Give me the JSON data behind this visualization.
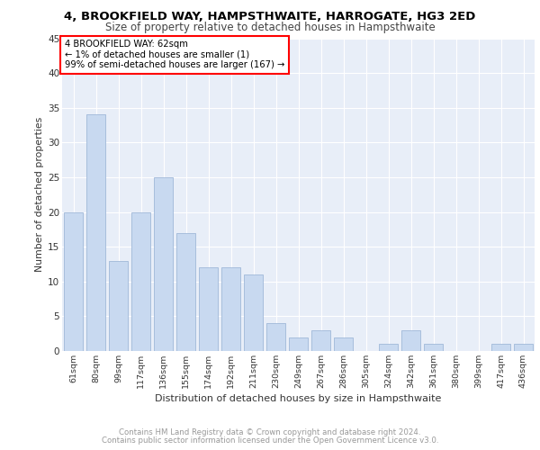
{
  "title1": "4, BROOKFIELD WAY, HAMPSTHWAITE, HARROGATE, HG3 2ED",
  "title2": "Size of property relative to detached houses in Hampsthwaite",
  "xlabel": "Distribution of detached houses by size in Hampsthwaite",
  "ylabel": "Number of detached properties",
  "categories": [
    "61sqm",
    "80sqm",
    "99sqm",
    "117sqm",
    "136sqm",
    "155sqm",
    "174sqm",
    "192sqm",
    "211sqm",
    "230sqm",
    "249sqm",
    "267sqm",
    "286sqm",
    "305sqm",
    "324sqm",
    "342sqm",
    "361sqm",
    "380sqm",
    "399sqm",
    "417sqm",
    "436sqm"
  ],
  "values": [
    20,
    34,
    13,
    20,
    25,
    17,
    12,
    12,
    11,
    4,
    2,
    3,
    2,
    0,
    1,
    3,
    1,
    0,
    0,
    1,
    1
  ],
  "bar_color": "#c8d9f0",
  "bar_edgecolor": "#a0b8d8",
  "bg_color": "#e8eef8",
  "annotation_text": "4 BROOKFIELD WAY: 62sqm\n← 1% of detached houses are smaller (1)\n99% of semi-detached houses are larger (167) →",
  "annotation_box_color": "white",
  "annotation_box_edgecolor": "red",
  "footer1": "Contains HM Land Registry data © Crown copyright and database right 2024.",
  "footer2": "Contains public sector information licensed under the Open Government Licence v3.0.",
  "ylim": [
    0,
    45
  ],
  "yticks": [
    0,
    5,
    10,
    15,
    20,
    25,
    30,
    35,
    40,
    45
  ]
}
